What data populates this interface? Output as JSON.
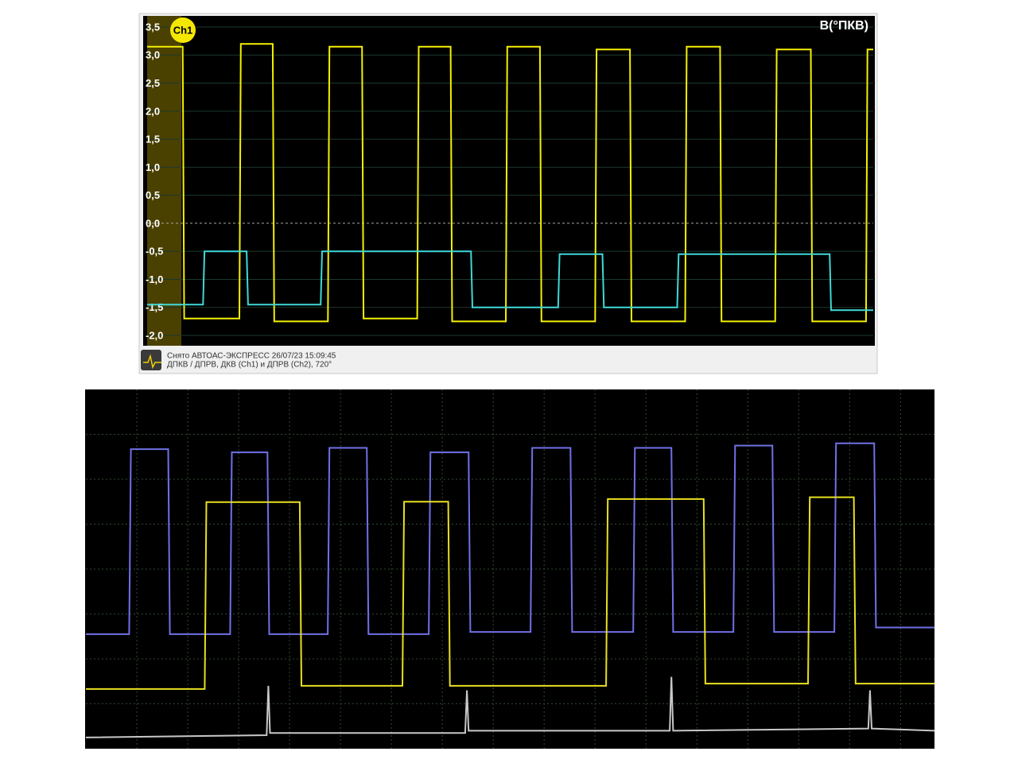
{
  "chart_data": [
    {
      "type": "line",
      "axis_label": "В(°ПКВ)",
      "caption": [
        "Снято АВТОАС-ЭКСПРЕСС 26/07/23 15:09:45",
        "ДПКВ / ДПРВ, ДКВ (Ch1) и ДПРВ (Ch2), 720°"
      ],
      "xlim": [
        0,
        100
      ],
      "ylim": [
        -2.0,
        3.5
      ],
      "yticks": [
        {
          "value": 3.5,
          "label": "3,5"
        },
        {
          "value": 3.0,
          "label": "3,0"
        },
        {
          "value": 2.5,
          "label": "2,5"
        },
        {
          "value": 2.0,
          "label": "2,0"
        },
        {
          "value": 1.5,
          "label": "1,5"
        },
        {
          "value": 1.0,
          "label": "1,0"
        },
        {
          "value": 0.5,
          "label": "0,5"
        },
        {
          "value": 0,
          "label": "0,0"
        },
        {
          "value": -0.5,
          "label": "-0,5"
        },
        {
          "value": -1.0,
          "label": "-1,0"
        },
        {
          "value": -1.5,
          "label": "-1,5"
        },
        {
          "value": -2.0,
          "label": "-2,0"
        }
      ],
      "grid": true,
      "series": [
        {
          "name": "Ch1",
          "color": "#f5f000",
          "x": [
            0,
            4.9,
            5.1,
            12.7,
            12.9,
            17.3,
            17.5,
            24.9,
            25.1,
            29.6,
            29.8,
            37.2,
            37.4,
            41.8,
            42.0,
            49.4,
            49.6,
            54.1,
            54.3,
            61.7,
            61.9,
            66.5,
            66.7,
            74.1,
            74.3,
            78.9,
            79.1,
            86.5,
            86.7,
            91.4,
            91.6,
            99.0,
            99.2,
            100
          ],
          "values": [
            3.15,
            3.15,
            -1.7,
            -1.7,
            3.2,
            3.2,
            -1.75,
            -1.75,
            3.15,
            3.15,
            -1.7,
            -1.7,
            3.15,
            3.15,
            -1.75,
            -1.75,
            3.15,
            3.15,
            -1.75,
            -1.75,
            3.1,
            3.1,
            -1.75,
            -1.75,
            3.15,
            3.15,
            -1.75,
            -1.75,
            3.1,
            3.1,
            -1.75,
            -1.75,
            3.1,
            3.1
          ]
        },
        {
          "color": "#40d8d8",
          "x": [
            0,
            7.7,
            7.9,
            13.7,
            13.9,
            23.9,
            24.1,
            44.6,
            44.8,
            56.6,
            56.8,
            62.7,
            62.9,
            73.0,
            73.2,
            94.0,
            94.2,
            100
          ],
          "values": [
            -1.45,
            -1.45,
            -0.5,
            -0.5,
            -1.45,
            -1.45,
            -0.5,
            -0.5,
            -1.5,
            -1.5,
            -0.55,
            -0.55,
            -1.5,
            -1.5,
            -0.55,
            -0.55,
            -1.55,
            -1.55
          ]
        }
      ]
    },
    {
      "type": "line",
      "xlim": [
        0,
        100
      ],
      "ylim": [
        0,
        8
      ],
      "xticks": [
        6,
        12,
        18,
        24,
        30,
        36,
        42,
        48,
        54,
        60,
        66,
        72,
        78,
        84,
        90,
        96
      ],
      "yticks": [
        1,
        2,
        3,
        4,
        5,
        6,
        7
      ],
      "grid": true,
      "series": [
        {
          "color": "#7070e8",
          "x": [
            0,
            5.1,
            5.3,
            9.7,
            9.9,
            17.0,
            17.2,
            21.4,
            21.6,
            28.5,
            28.7,
            33.1,
            33.3,
            40.4,
            40.6,
            45.1,
            45.3,
            52.4,
            52.6,
            57.1,
            57.3,
            64.5,
            64.7,
            69.0,
            69.2,
            76.3,
            76.5,
            80.9,
            81.1,
            88.2,
            88.4,
            92.9,
            93.1,
            100
          ],
          "values": [
            2.55,
            2.55,
            6.67,
            6.67,
            2.55,
            2.55,
            6.6,
            6.6,
            2.55,
            2.55,
            6.7,
            6.7,
            2.55,
            2.55,
            6.6,
            6.6,
            2.6,
            2.6,
            6.7,
            6.7,
            2.6,
            2.6,
            6.7,
            6.7,
            2.6,
            2.6,
            6.75,
            6.75,
            2.6,
            2.6,
            6.8,
            6.8,
            2.7,
            2.7
          ]
        },
        {
          "color": "#e8e020",
          "x": [
            0,
            14.0,
            14.2,
            25.2,
            25.4,
            37.3,
            37.5,
            42.7,
            42.9,
            61.3,
            61.5,
            72.8,
            73.0,
            85.1,
            85.3,
            90.5,
            90.7,
            100
          ],
          "values": [
            1.33,
            1.33,
            5.49,
            5.49,
            1.4,
            1.4,
            5.5,
            5.5,
            1.4,
            1.4,
            5.56,
            5.56,
            1.45,
            1.45,
            5.6,
            5.6,
            1.45,
            1.45
          ]
        },
        {
          "color": "#c8c8c8",
          "x": [
            0,
            21.3,
            21.5,
            21.7,
            44.7,
            44.9,
            45.1,
            68.8,
            69.0,
            69.2,
            92.2,
            92.4,
            92.6,
            100
          ],
          "values": [
            0.25,
            0.3,
            1.4,
            0.35,
            0.35,
            1.3,
            0.4,
            0.4,
            1.6,
            0.4,
            0.45,
            1.3,
            0.45,
            0.4
          ]
        }
      ]
    }
  ]
}
